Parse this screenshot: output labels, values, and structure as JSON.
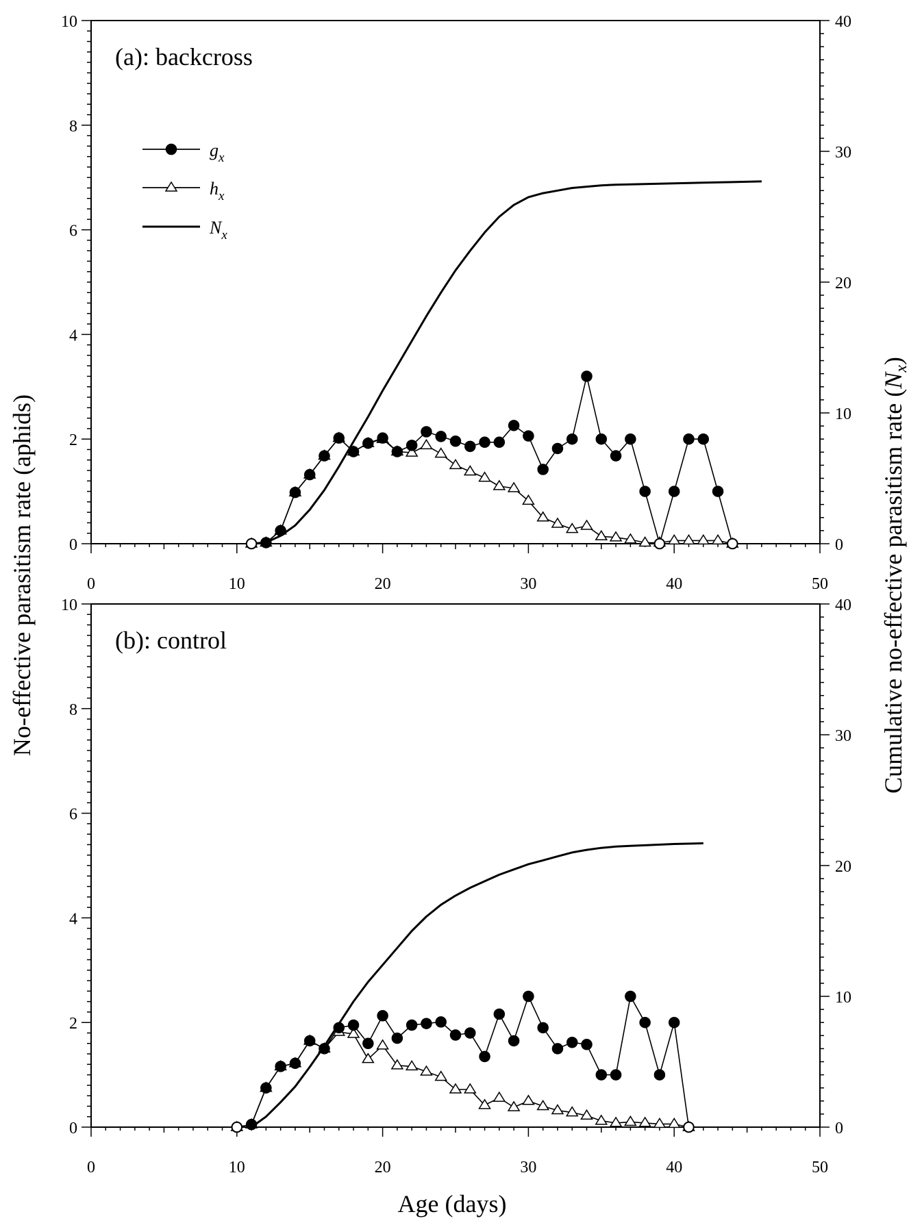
{
  "figure": {
    "ylabel_left": "No-effective parasitism rate (aphids)",
    "ylabel_right_prefix": "Cumulative no-effective parasitism rate (",
    "ylabel_right_symbol": "N",
    "ylabel_right_sub": "x",
    "ylabel_right_suffix": ")",
    "xlabel": "Age (days)"
  },
  "legend": [
    {
      "symbol": "g",
      "sub": "x",
      "marker": "filled-circle"
    },
    {
      "symbol": "h",
      "sub": "x",
      "marker": "open-triangle"
    },
    {
      "symbol": "N",
      "sub": "x",
      "marker": "line"
    }
  ],
  "colors": {
    "line": "#000000",
    "background": "#ffffff"
  },
  "chart_data": [
    {
      "type": "line",
      "title": "(a): backcross",
      "xlabel": "Age (days)",
      "ylabel": "No-effective parasitism rate (aphids)",
      "y2label": "Cumulative no-effective parasitism rate (Nx)",
      "xlim": [
        0,
        50
      ],
      "ylim": [
        0,
        10
      ],
      "y2lim": [
        0,
        40
      ],
      "xticks": [
        0,
        10,
        20,
        30,
        40,
        50
      ],
      "yticks": [
        0,
        2,
        4,
        6,
        8,
        10
      ],
      "y2ticks": [
        0,
        10,
        20,
        30,
        40
      ],
      "series": [
        {
          "name": "gx",
          "axis": "left",
          "marker": "filled-circle",
          "x": [
            11,
            12,
            13,
            14,
            15,
            16,
            17,
            18,
            19,
            20,
            21,
            22,
            23,
            24,
            25,
            26,
            27,
            28,
            29,
            30,
            31,
            32,
            33,
            34,
            35,
            36,
            37,
            38,
            39,
            40,
            41,
            42,
            43,
            44
          ],
          "y": [
            0,
            0.02,
            0.25,
            0.98,
            1.32,
            1.68,
            2.02,
            1.76,
            1.92,
            2.02,
            1.76,
            1.88,
            2.14,
            2.05,
            1.96,
            1.86,
            1.94,
            1.94,
            2.26,
            2.06,
            1.42,
            1.82,
            2.0,
            3.2,
            2.0,
            1.68,
            2.0,
            1.0,
            0,
            1.0,
            2.0,
            2.0,
            1.0,
            0
          ]
        },
        {
          "name": "hx",
          "axis": "left",
          "marker": "open-triangle",
          "x": [
            11,
            12,
            13,
            14,
            15,
            16,
            17,
            18,
            19,
            20,
            21,
            22,
            23,
            24,
            25,
            26,
            27,
            28,
            29,
            30,
            31,
            32,
            33,
            34,
            35,
            36,
            37,
            38,
            39,
            40,
            41,
            42,
            43,
            44
          ],
          "y": [
            0,
            0.02,
            0.25,
            0.98,
            1.32,
            1.68,
            2.02,
            1.76,
            1.92,
            2.0,
            1.76,
            1.74,
            1.88,
            1.72,
            1.5,
            1.38,
            1.26,
            1.1,
            1.06,
            0.82,
            0.5,
            0.38,
            0.28,
            0.34,
            0.14,
            0.12,
            0.08,
            0.02,
            0.02,
            0.06,
            0.06,
            0.06,
            0.06,
            0
          ]
        },
        {
          "name": "Nx",
          "axis": "right",
          "marker": "none",
          "x": [
            11,
            12,
            13,
            14,
            15,
            16,
            17,
            18,
            19,
            20,
            21,
            22,
            23,
            24,
            25,
            26,
            27,
            28,
            29,
            30,
            31,
            32,
            33,
            34,
            35,
            36,
            38,
            40,
            42,
            44,
            46
          ],
          "y": [
            0,
            0.1,
            0.6,
            1.4,
            2.6,
            4.1,
            5.9,
            7.8,
            9.7,
            11.7,
            13.6,
            15.5,
            17.4,
            19.2,
            20.9,
            22.4,
            23.8,
            25.0,
            25.9,
            26.5,
            26.8,
            27.0,
            27.2,
            27.3,
            27.4,
            27.45,
            27.5,
            27.55,
            27.6,
            27.65,
            27.7
          ]
        }
      ]
    },
    {
      "type": "line",
      "title": "(b): control",
      "xlabel": "Age (days)",
      "ylabel": "No-effective parasitism rate (aphids)",
      "y2label": "Cumulative no-effective parasitism rate (Nx)",
      "xlim": [
        0,
        50
      ],
      "ylim": [
        0,
        10
      ],
      "y2lim": [
        0,
        40
      ],
      "xticks": [
        0,
        10,
        20,
        30,
        40,
        50
      ],
      "yticks": [
        0,
        2,
        4,
        6,
        8,
        10
      ],
      "y2ticks": [
        0,
        10,
        20,
        30,
        40
      ],
      "series": [
        {
          "name": "gx",
          "axis": "left",
          "marker": "filled-circle",
          "x": [
            10,
            11,
            12,
            13,
            14,
            15,
            16,
            17,
            18,
            19,
            20,
            21,
            22,
            23,
            24,
            25,
            26,
            27,
            28,
            29,
            30,
            31,
            32,
            33,
            34,
            35,
            36,
            37,
            38,
            39,
            40,
            41
          ],
          "y": [
            0,
            0.05,
            0.75,
            1.16,
            1.22,
            1.65,
            1.5,
            1.9,
            1.95,
            1.6,
            2.13,
            1.7,
            1.95,
            1.98,
            2.01,
            1.76,
            1.8,
            1.35,
            2.16,
            1.65,
            2.5,
            1.9,
            1.5,
            1.62,
            1.58,
            1.0,
            1.0,
            2.5,
            2.0,
            1.0,
            2.0,
            0
          ]
        },
        {
          "name": "hx",
          "axis": "left",
          "marker": "open-triangle",
          "x": [
            10,
            11,
            12,
            13,
            14,
            15,
            16,
            17,
            18,
            19,
            20,
            21,
            22,
            23,
            24,
            25,
            26,
            27,
            28,
            29,
            30,
            31,
            32,
            33,
            34,
            35,
            36,
            37,
            38,
            39,
            40,
            41
          ],
          "y": [
            0,
            0.05,
            0.75,
            1.16,
            1.22,
            1.65,
            1.5,
            1.82,
            1.78,
            1.3,
            1.56,
            1.18,
            1.16,
            1.06,
            0.96,
            0.72,
            0.72,
            0.42,
            0.56,
            0.38,
            0.5,
            0.4,
            0.32,
            0.28,
            0.22,
            0.12,
            0.08,
            0.1,
            0.08,
            0.06,
            0.06,
            0
          ]
        },
        {
          "name": "Nx",
          "axis": "right",
          "marker": "none",
          "x": [
            11,
            12,
            13,
            14,
            15,
            16,
            17,
            18,
            19,
            20,
            21,
            22,
            23,
            24,
            25,
            26,
            27,
            28,
            29,
            30,
            31,
            32,
            33,
            34,
            35,
            36,
            37,
            38,
            40,
            42
          ],
          "y": [
            0,
            0.8,
            1.9,
            3.1,
            4.6,
            6.2,
            7.9,
            9.6,
            11.1,
            12.4,
            13.7,
            15.0,
            16.1,
            17.0,
            17.7,
            18.3,
            18.8,
            19.3,
            19.7,
            20.1,
            20.4,
            20.7,
            21.0,
            21.2,
            21.35,
            21.45,
            21.5,
            21.55,
            21.65,
            21.7
          ]
        }
      ]
    }
  ]
}
